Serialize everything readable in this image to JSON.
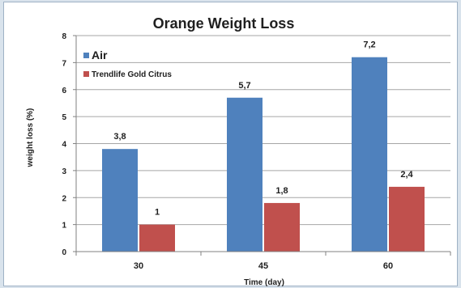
{
  "chart_data": {
    "type": "bar",
    "title": "Orange Weight Loss",
    "xlabel": "Time (day)",
    "ylabel": "weight loss (%)",
    "categories": [
      "30",
      "45",
      "60"
    ],
    "ylim": [
      0,
      8
    ],
    "yticks": [
      "0",
      "1",
      "2",
      "3",
      "4",
      "5",
      "6",
      "7",
      "8"
    ],
    "grid": true,
    "legend_position": "top-left",
    "series": [
      {
        "name": "Air",
        "values": [
          3.8,
          5.7,
          7.2
        ],
        "labels": [
          "3,8",
          "5,7",
          "7,2"
        ],
        "color": "#4f81bd"
      },
      {
        "name": "Trendlife Gold Citrus",
        "values": [
          1,
          1.8,
          2.4
        ],
        "labels": [
          "1",
          "1,8",
          "2,4"
        ],
        "color": "#c0504d"
      }
    ]
  }
}
